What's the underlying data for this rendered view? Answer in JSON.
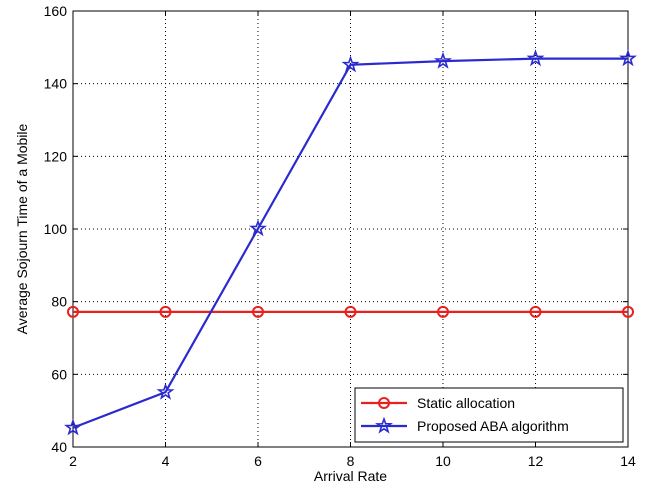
{
  "chart_data": {
    "type": "line",
    "title": "",
    "xlabel": "Arrival Rate",
    "ylabel": "Average Sojourn Time of a Mobile",
    "x": [
      2,
      4,
      6,
      8,
      10,
      12,
      14
    ],
    "xlim": [
      2,
      14
    ],
    "ylim": [
      40,
      160
    ],
    "xticks": [
      "2",
      "4",
      "6",
      "8",
      "10",
      "12",
      "14"
    ],
    "yticks": [
      "40",
      "60",
      "80",
      "100",
      "120",
      "140",
      "160"
    ],
    "grid": true,
    "legend_position": "bottom-right",
    "series": [
      {
        "name": "Static allocation",
        "color": "#e8201e",
        "marker": "circle",
        "values": [
          77.2,
          77.2,
          77.2,
          77.2,
          77.2,
          77.2,
          77.2
        ]
      },
      {
        "name": "Proposed ABA algorithm",
        "color": "#2a2ad0",
        "marker": "star",
        "values": [
          45.3,
          55.1,
          100.1,
          145.2,
          146.2,
          146.9,
          146.9
        ]
      }
    ]
  }
}
